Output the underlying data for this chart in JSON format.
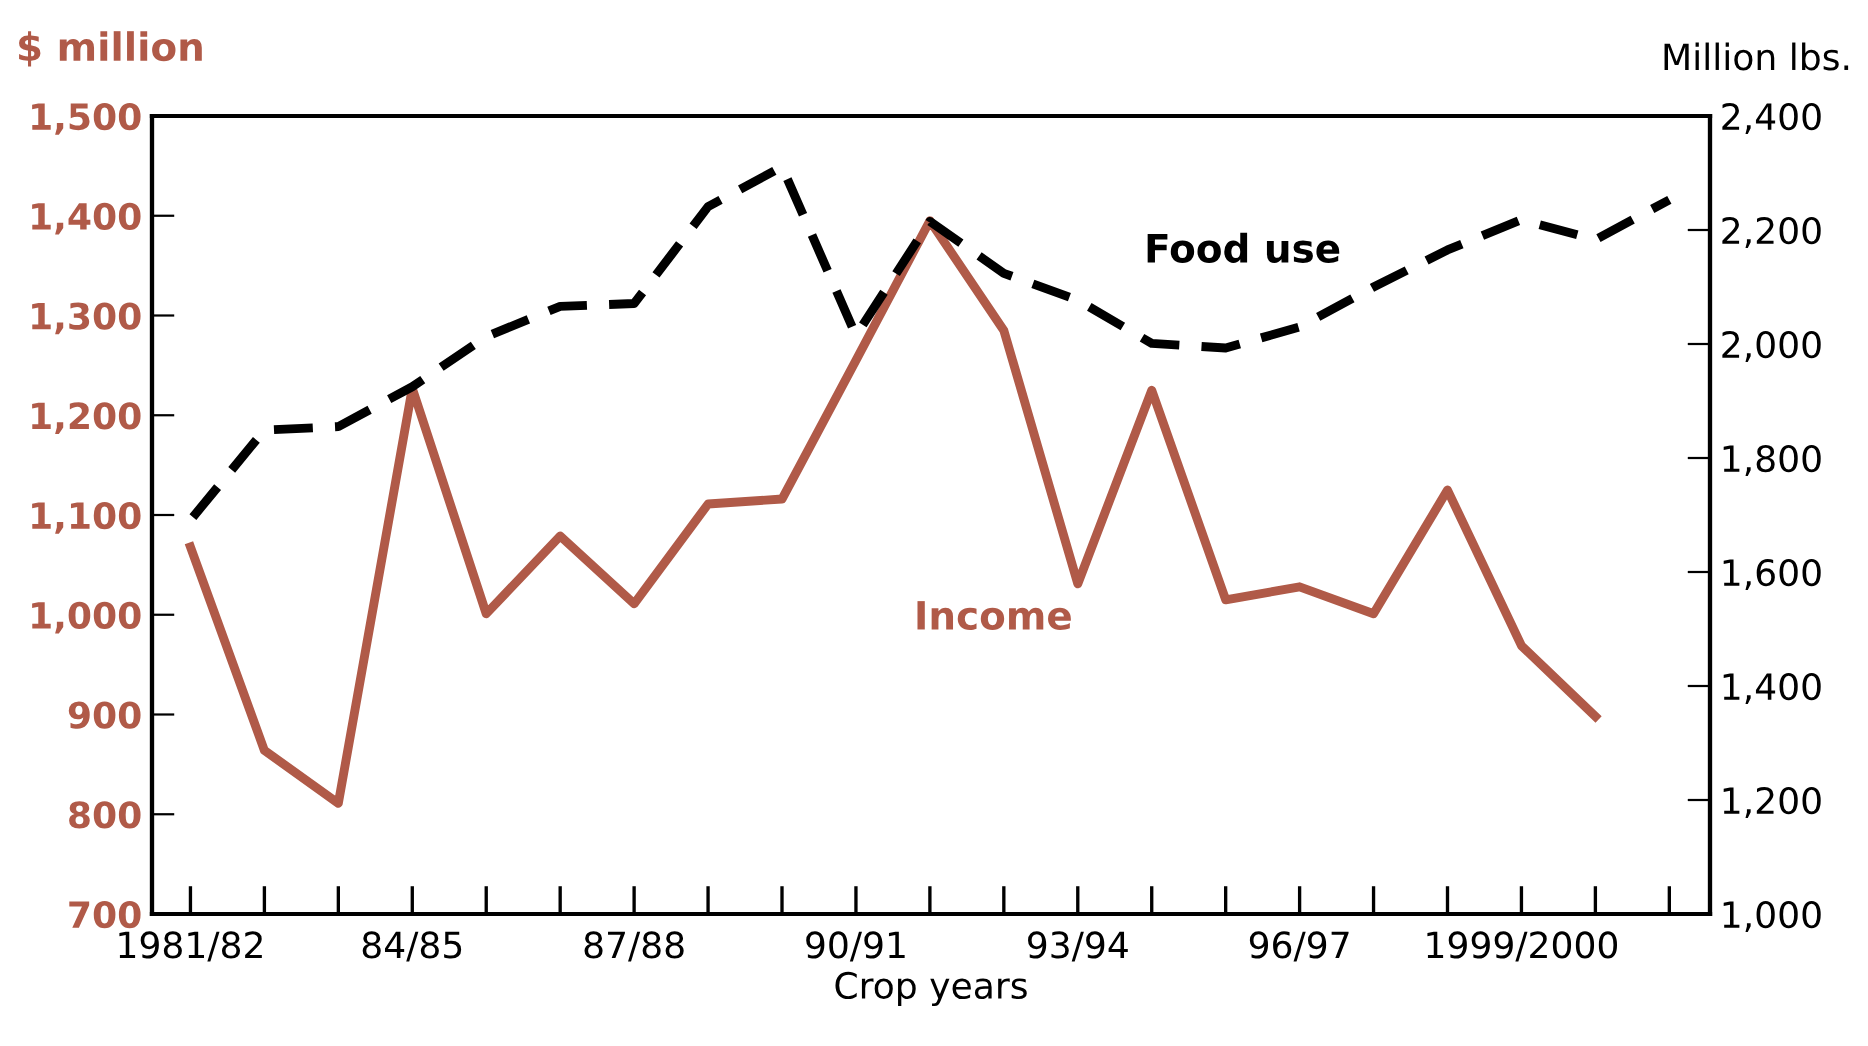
{
  "chart_data": {
    "type": "line",
    "categories": [
      "1981/82",
      null,
      null,
      "84/85",
      null,
      null,
      "87/88",
      null,
      null,
      "90/91",
      null,
      null,
      "93/94",
      null,
      null,
      "96/97",
      null,
      null,
      "1999/2000",
      null,
      null
    ],
    "xlabel": "Crop years",
    "ylabel": "$ million",
    "y2label": "Million lbs.",
    "ylim": [
      700,
      1500
    ],
    "yticks": [
      700,
      800,
      900,
      {
        "value": 1000,
        "label": "1,000"
      },
      {
        "value": 1100,
        "label": "1,100"
      },
      {
        "value": 1200,
        "label": "1,200"
      },
      {
        "value": 1300,
        "label": "1,300"
      },
      {
        "value": 1400,
        "label": "1,400"
      },
      {
        "value": 1500,
        "label": "1,500"
      }
    ],
    "y2lim": [
      1000,
      2400
    ],
    "y2ticks": [
      {
        "value": 1000,
        "label": "1,000"
      },
      {
        "value": 1200,
        "label": "1,200"
      },
      {
        "value": 1400,
        "label": "1,400"
      },
      {
        "value": 1600,
        "label": "1,600"
      },
      {
        "value": 1800,
        "label": "1,800"
      },
      {
        "value": 2000,
        "label": "2,000"
      },
      {
        "value": 2200,
        "label": "2,200"
      },
      {
        "value": 2400,
        "label": "2,400"
      }
    ],
    "grid": false,
    "legend": false,
    "series": [
      {
        "name": "Food use",
        "color": "#000000",
        "axis": "y2",
        "line_style": "dashed",
        "values": [
          1691,
          1849,
          1855,
          1925,
          2013,
          2066,
          2071,
          2241,
          2311,
          2015,
          2215,
          2124,
          2077,
          2001,
          1993,
          2030,
          2100,
          2165,
          2218,
          2183,
          2253
        ]
      },
      {
        "name": "Income",
        "color": "#b05a48",
        "axis": "y",
        "line_style": "solid",
        "values": [
          1068,
          864,
          811,
          1227,
          1001,
          1079,
          1011,
          1111,
          1116,
          1255,
          1395,
          1285,
          1031,
          1225,
          1015,
          1028,
          1001,
          1125,
          969,
          898,
          null
        ]
      }
    ]
  }
}
